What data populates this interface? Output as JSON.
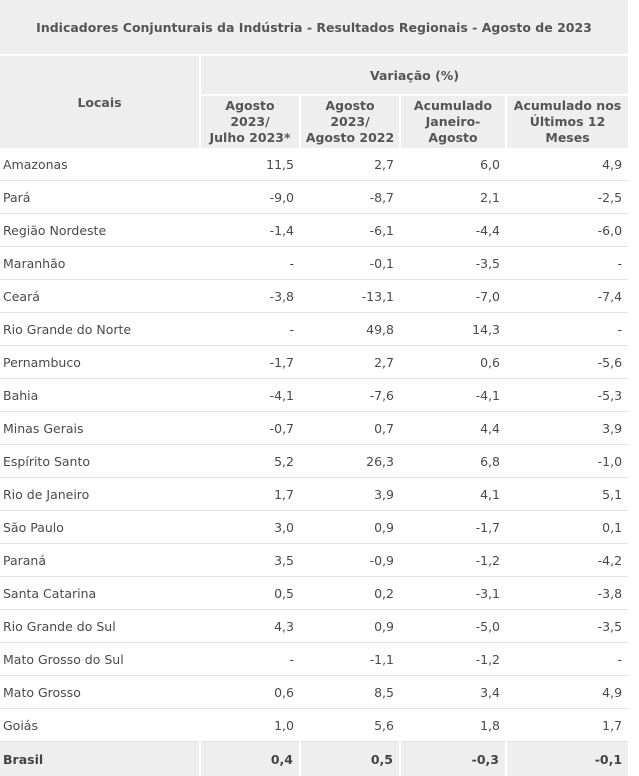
{
  "table": {
    "title": "Indicadores Conjunturais da Indústria  -  Resultados Regionais  -  Agosto de 2023",
    "locais_header": "Locais",
    "variacao_header": "Variação (%)",
    "columns": [
      [
        "Agosto 2023/",
        "Julho 2023*"
      ],
      [
        "Agosto 2023/",
        "Agosto 2022"
      ],
      [
        "Acumulado",
        "Janeiro-Agosto"
      ],
      [
        "Acumulado nos",
        "Últimos 12 Meses"
      ]
    ],
    "rows": [
      {
        "local": "Amazonas",
        "values": [
          "11,5",
          "2,7",
          "6,0",
          "4,9"
        ]
      },
      {
        "local": "Pará",
        "values": [
          "-9,0",
          "-8,7",
          "2,1",
          "-2,5"
        ]
      },
      {
        "local": "Região Nordeste",
        "values": [
          "-1,4",
          "-6,1",
          "-4,4",
          "-6,0"
        ]
      },
      {
        "local": "Maranhão",
        "values": [
          "-",
          "-0,1",
          "-3,5",
          "-"
        ]
      },
      {
        "local": "Ceará",
        "values": [
          "-3,8",
          "-13,1",
          "-7,0",
          "-7,4"
        ]
      },
      {
        "local": "Rio Grande do Norte",
        "values": [
          "-",
          "49,8",
          "14,3",
          "-"
        ]
      },
      {
        "local": "Pernambuco",
        "values": [
          "-1,7",
          "2,7",
          "0,6",
          "-5,6"
        ]
      },
      {
        "local": "Bahia",
        "values": [
          "-4,1",
          "-7,6",
          "-4,1",
          "-5,3"
        ]
      },
      {
        "local": "Minas Gerais",
        "values": [
          "-0,7",
          "0,7",
          "4,4",
          "3,9"
        ]
      },
      {
        "local": "Espírito Santo",
        "values": [
          "5,2",
          "26,3",
          "6,8",
          "-1,0"
        ]
      },
      {
        "local": "Rio de Janeiro",
        "values": [
          "1,7",
          "3,9",
          "4,1",
          "5,1"
        ]
      },
      {
        "local": "São Paulo",
        "values": [
          "3,0",
          "0,9",
          "-1,7",
          "0,1"
        ]
      },
      {
        "local": "Paraná",
        "values": [
          "3,5",
          "-0,9",
          "-1,2",
          "-4,2"
        ]
      },
      {
        "local": "Santa Catarina",
        "values": [
          "0,5",
          "0,2",
          "-3,1",
          "-3,8"
        ]
      },
      {
        "local": "Rio Grande do Sul",
        "values": [
          "4,3",
          "0,9",
          "-5,0",
          "-3,5"
        ]
      },
      {
        "local": "Mato Grosso do Sul",
        "values": [
          "-",
          "-1,1",
          "-1,2",
          "-"
        ]
      },
      {
        "local": "Mato Grosso",
        "values": [
          "0,6",
          "8,5",
          "3,4",
          "4,9"
        ]
      },
      {
        "local": "Goiás",
        "values": [
          "1,0",
          "5,6",
          "1,8",
          "1,7"
        ]
      }
    ],
    "total": {
      "local": "Brasil",
      "values": [
        "0,4",
        "0,5",
        "-0,3",
        "-0,1"
      ]
    }
  }
}
